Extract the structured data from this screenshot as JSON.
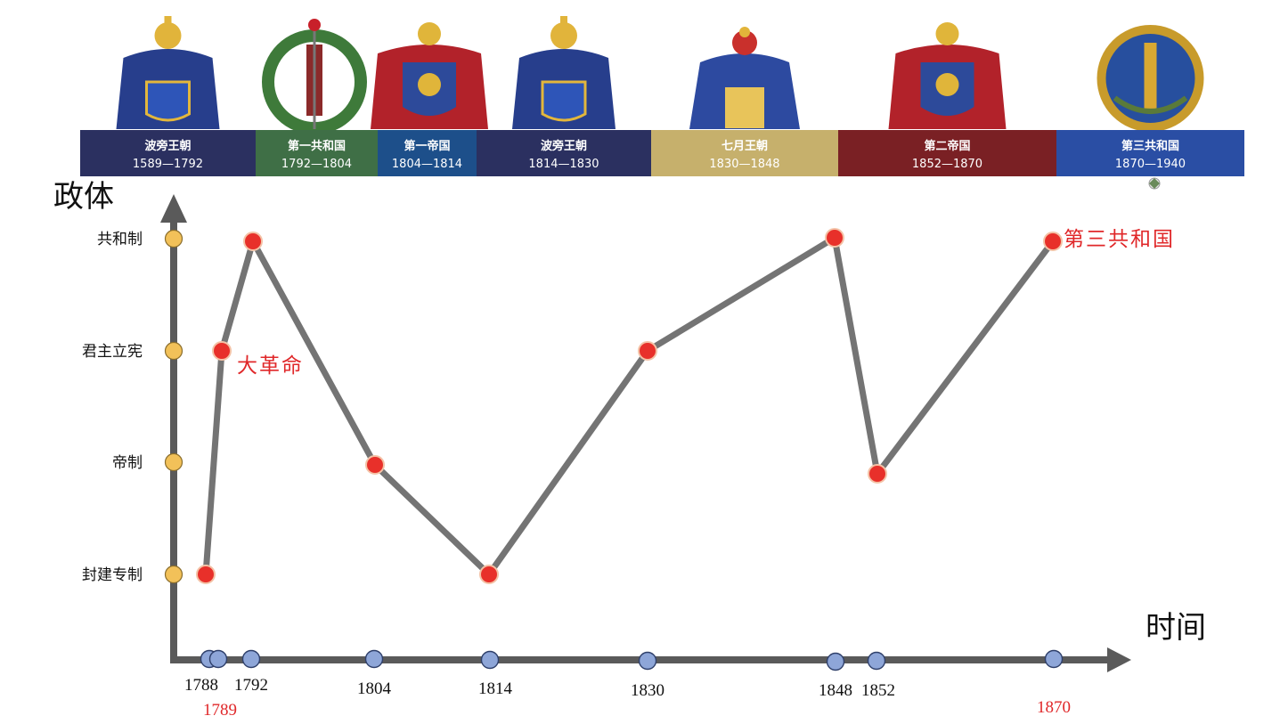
{
  "axes": {
    "y_title": "政体",
    "x_title": "时间"
  },
  "colors": {
    "line": "#747474",
    "axis": "#5a5a5a",
    "point": "#e8302a",
    "y_tick": "#f2c159",
    "x_tick": "#8ea6d8",
    "highlight": "#e0282a"
  },
  "periods": [
    {
      "name": "波旁王朝",
      "years": "1589—1792",
      "color": "#2b3060",
      "emblem": "bourbon-coat-of-arms"
    },
    {
      "name": "第一共和国",
      "years": "1792—1804",
      "color": "#3f6f46",
      "emblem": "fasces-wreath-emblem"
    },
    {
      "name": "第一帝国",
      "years": "1804—1814",
      "color": "#1d4f8a",
      "emblem": "imperial-eagle-coat-of-arms"
    },
    {
      "name": "波旁王朝",
      "years": "1814—1830",
      "color": "#2b3060",
      "emblem": "bourbon-coat-of-arms"
    },
    {
      "name": "七月王朝",
      "years": "1830—1848",
      "color": "#c6b06c",
      "emblem": "charte-coat-of-arms"
    },
    {
      "name": "第二帝国",
      "years": "1852—1870",
      "color": "#7a2024",
      "emblem": "imperial-eagle-coat-of-arms"
    },
    {
      "name": "第三共和国",
      "years": "1870—1940",
      "color": "#2a4ea4",
      "emblem": "republic-seal"
    }
  ],
  "chart_data": {
    "type": "line",
    "y_categories": [
      "封建专制",
      "帝制",
      "君主立宪",
      "共和制"
    ],
    "x_ticks": [
      "1788",
      "1792",
      "1804",
      "1814",
      "1830",
      "1848",
      "1852"
    ],
    "x_ticks_highlight": [
      "1789",
      "1870"
    ],
    "series": [
      {
        "points": [
          {
            "year": 1788,
            "regime": "封建专制"
          },
          {
            "year": 1789,
            "regime": "君主立宪"
          },
          {
            "year": 1792,
            "regime": "共和制"
          },
          {
            "year": 1804,
            "regime": "帝制"
          },
          {
            "year": 1814,
            "regime": "封建专制"
          },
          {
            "year": 1830,
            "regime": "君主立宪"
          },
          {
            "year": 1848,
            "regime": "共和制"
          },
          {
            "year": 1852,
            "regime": "帝制"
          },
          {
            "year": 1870,
            "regime": "共和制"
          }
        ]
      }
    ],
    "annotations": [
      {
        "text": "大革命",
        "year": 1789
      },
      {
        "text": "第三共和国",
        "year": 1870
      }
    ]
  }
}
